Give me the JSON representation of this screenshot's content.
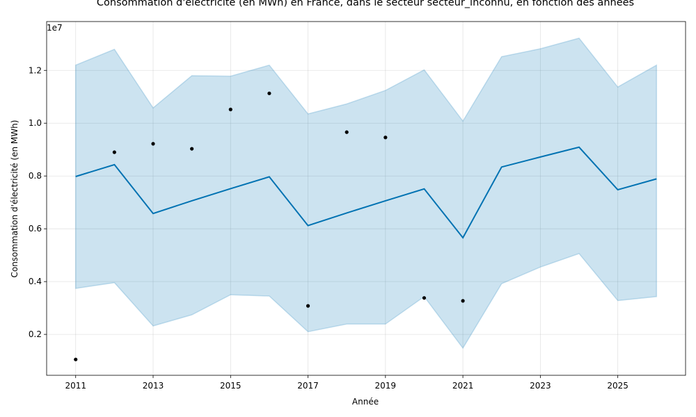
{
  "chart_data": {
    "type": "line",
    "title": "Consommation d'électricité (en MWh) en France, dans le secteur secteur_inconnu, en fonction des années",
    "xlabel": "Année",
    "ylabel": "Consommation d'électricité (en MWh)",
    "y_offset_label": "1e7",
    "xlim": [
      2010.25,
      2026.75
    ],
    "ylim": [
      0.045,
      1.385
    ],
    "x_ticks": [
      2011,
      2013,
      2015,
      2017,
      2019,
      2021,
      2023,
      2025
    ],
    "y_ticks": [
      0.2,
      0.4,
      0.6,
      0.8,
      1.0,
      1.2
    ],
    "y_tick_labels": [
      "0.2",
      "0.4",
      "0.6",
      "0.8",
      "1.0",
      "1.2"
    ],
    "grid": true,
    "colors": {
      "forecast": "#0072b2",
      "interval": "#0072b2",
      "observed": "#000000"
    },
    "observed": {
      "x": [
        2011,
        2012,
        2013,
        2014,
        2015,
        2016,
        2017,
        2018,
        2019,
        2020,
        2021
      ],
      "y": [
        0.105,
        0.89,
        0.922,
        0.903,
        1.052,
        1.113,
        0.308,
        0.966,
        0.946,
        0.338,
        0.327
      ]
    },
    "forecast": {
      "x": [
        2011,
        2012,
        2013,
        2014,
        2015,
        2016,
        2017,
        2018,
        2019,
        2020,
        2021,
        2022,
        2023,
        2024,
        2025,
        2026
      ],
      "yhat": [
        0.798,
        0.843,
        0.658,
        0.706,
        0.752,
        0.797,
        0.612,
        0.66,
        0.706,
        0.751,
        0.566,
        0.834,
        0.872,
        0.909,
        0.748,
        0.789
      ],
      "yhat_upper": [
        1.22,
        1.28,
        1.058,
        1.18,
        1.178,
        1.22,
        1.035,
        1.073,
        1.124,
        1.202,
        1.008,
        1.252,
        1.282,
        1.322,
        1.137,
        1.22
      ],
      "yhat_lower": [
        0.374,
        0.396,
        0.232,
        0.274,
        0.35,
        0.345,
        0.21,
        0.239,
        0.239,
        0.343,
        0.148,
        0.392,
        0.455,
        0.506,
        0.328,
        0.343
      ]
    }
  }
}
